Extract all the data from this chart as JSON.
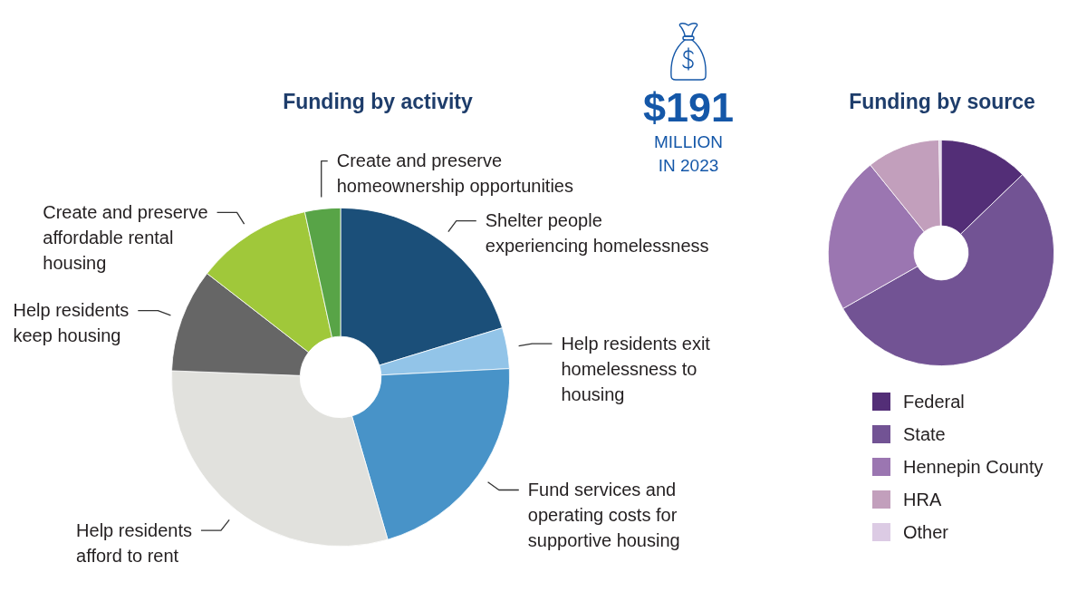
{
  "chart_data": [
    {
      "type": "donut",
      "title": "Funding by activity",
      "categories": [
        "Shelter people\nexperiencing homelessness",
        "Help residents exit\nhomelessness to\nhousing",
        "Fund services and\noperating costs for\nsupportive housing",
        "Help residents\nafford to rent",
        "Help residents\nkeep housing",
        "Create and preserve\naffordable rental\nhousing",
        "Create and preserve\nhomeownership opportunities"
      ],
      "values": [
        20.3,
        3.9,
        21.3,
        30.1,
        9.9,
        11.1,
        3.4
      ],
      "colors": [
        "#1b4f79",
        "#92c4e8",
        "#4893c8",
        "#e1e1dd",
        "#666666",
        "#a0c83a",
        "#58a447"
      ]
    },
    {
      "type": "other",
      "title": "$191",
      "annotations": [
        "MILLION",
        "IN 2023"
      ]
    },
    {
      "type": "donut",
      "title": "Funding by source",
      "categories": [
        "Federal",
        "State",
        "Hennepin County",
        "HRA",
        "Other"
      ],
      "values": [
        12.8,
        54.0,
        22.4,
        10.5,
        0.3
      ],
      "colors": [
        "#532e77",
        "#725394",
        "#9b76b1",
        "#c29fbc",
        "#dccbe4"
      ],
      "legend": "bottom"
    }
  ]
}
